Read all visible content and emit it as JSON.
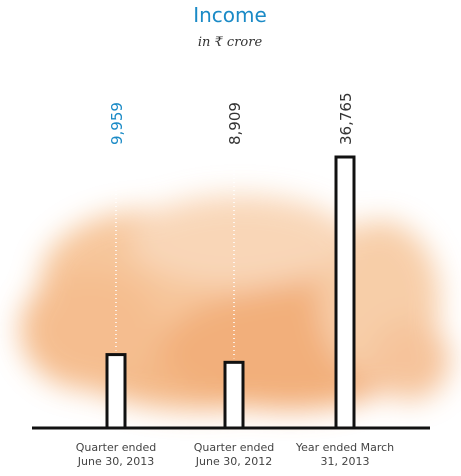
{
  "chart_data": {
    "type": "bar",
    "title": "Income",
    "subtitle": "in ₹ crore",
    "categories": [
      "Quarter ended June 30, 2013",
      "Quarter ended June 30, 2012",
      "Year ended March 31, 2013"
    ],
    "values": [
      9959,
      8909,
      36765
    ],
    "value_labels": [
      "9,959",
      "8,909",
      "36,765"
    ],
    "value_label_colors": [
      "#1a8ac6",
      "#333333",
      "#333333"
    ],
    "color": "#ffffff",
    "edge_color": "#111111",
    "title_color": "#1a8ac6"
  }
}
